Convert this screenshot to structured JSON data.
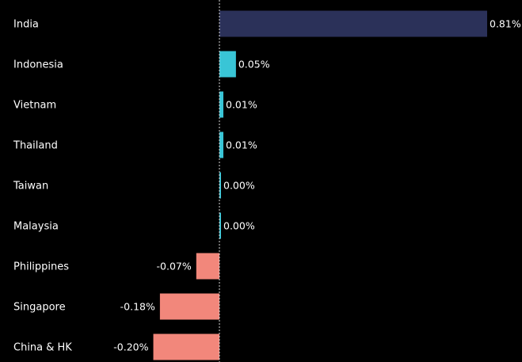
{
  "chart_data": {
    "type": "bar",
    "orientation": "horizontal",
    "title": "",
    "xlabel": "",
    "ylabel": "",
    "grid": false,
    "zero_line": "dotted",
    "categories": [
      "India",
      "Indonesia",
      "Vietnam",
      "Thailand",
      "Taiwan",
      "Malaysia",
      "Philippines",
      "Singapore",
      "China & HK"
    ],
    "values": [
      0.81,
      0.05,
      0.01,
      0.01,
      0.0,
      0.0,
      -0.07,
      -0.18,
      -0.2
    ],
    "value_labels": [
      "0.81%",
      "0.05%",
      "0.01%",
      "0.01%",
      "0.00%",
      "0.00%",
      "-0.07%",
      "-0.18%",
      "-0.20%"
    ],
    "colors": [
      "#2b3159",
      "#39c5d6",
      "#39c5d6",
      "#39c5d6",
      "#39c5d6",
      "#39c5d6",
      "#f2877b",
      "#f2877b",
      "#f2877b"
    ],
    "background": "#000000",
    "text_color": "#ffffff",
    "zero_line_color": "#d9d9d9"
  }
}
